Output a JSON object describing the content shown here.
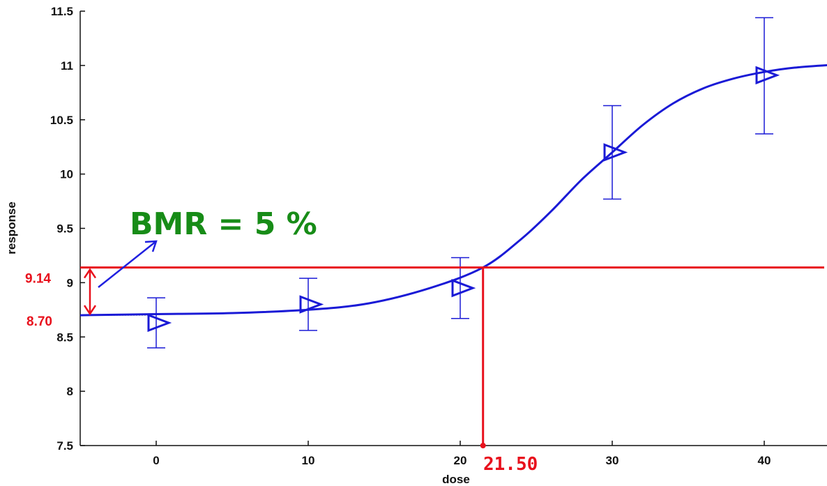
{
  "chart_data": {
    "type": "scatter",
    "title": "",
    "xlabel": "dose",
    "ylabel": "response",
    "xlim": [
      -5,
      45
    ],
    "ylim": [
      7.5,
      11.5
    ],
    "x_ticks": [
      0,
      10,
      20,
      30,
      40
    ],
    "y_ticks": [
      7.5,
      8,
      8.5,
      9,
      9.5,
      10,
      10.5,
      11,
      11.5
    ],
    "y_tick_labels": [
      "7.5",
      "8",
      "8.5",
      "9",
      "9.5",
      "10",
      "10.5",
      "11",
      "11.5"
    ],
    "points": [
      {
        "x": 0,
        "y": 8.63,
        "err_low": 8.4,
        "err_high": 8.86
      },
      {
        "x": 10,
        "y": 8.8,
        "err_low": 8.56,
        "err_high": 9.04
      },
      {
        "x": 20,
        "y": 8.95,
        "err_low": 8.67,
        "err_high": 9.23
      },
      {
        "x": 30,
        "y": 10.2,
        "err_low": 9.77,
        "err_high": 10.63
      },
      {
        "x": 40,
        "y": 10.91,
        "err_low": 10.37,
        "err_high": 11.44
      }
    ],
    "fit_curve": {
      "x": [
        -5,
        0,
        5,
        10,
        14,
        18,
        21.5,
        24,
        26,
        28,
        30,
        32,
        34,
        36,
        38,
        40,
        42,
        45
      ],
      "y": [
        8.7,
        8.71,
        8.72,
        8.75,
        8.81,
        8.95,
        9.14,
        9.4,
        9.66,
        9.95,
        10.2,
        10.45,
        10.65,
        10.79,
        10.88,
        10.94,
        10.98,
        11.01
      ]
    },
    "series_color": "#1a1ad6",
    "annotation_color": "#e8101c",
    "bmr_color": "#178c17",
    "annotations": {
      "background_response": 8.7,
      "background_label": "8.70",
      "bmr_response": 9.14,
      "bmr_response_label": "9.14",
      "bmd": 21.5,
      "bmd_label": "21.50",
      "bmr_text": "BMR = 5 %"
    }
  }
}
